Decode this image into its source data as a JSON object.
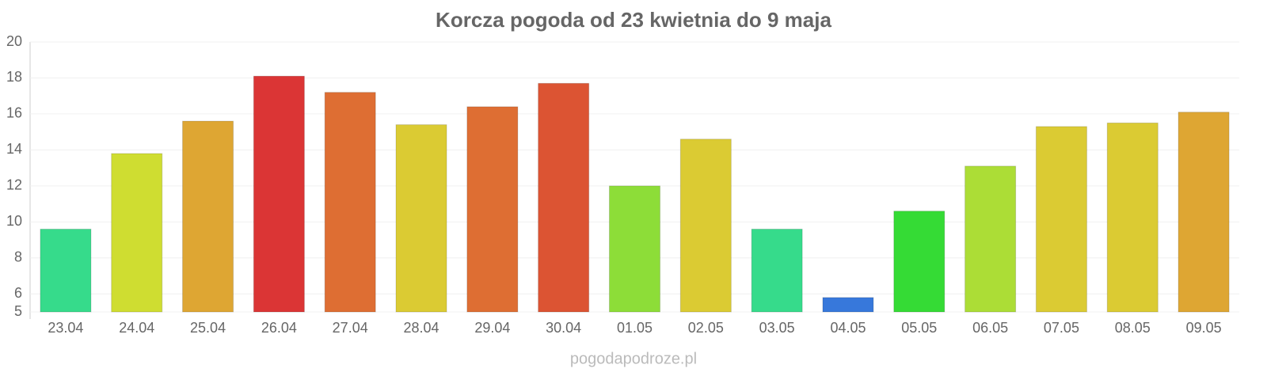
{
  "chart_data": {
    "type": "bar",
    "title": "Korcza pogoda od 23 kwietnia do 9 maja",
    "categories": [
      "23.04",
      "24.04",
      "25.04",
      "26.04",
      "27.04",
      "28.04",
      "29.04",
      "30.04",
      "01.05",
      "02.05",
      "03.05",
      "04.05",
      "05.05",
      "06.05",
      "07.05",
      "08.05",
      "09.05"
    ],
    "values": [
      9.6,
      13.8,
      15.6,
      18.1,
      17.2,
      15.4,
      16.4,
      17.7,
      12.0,
      14.6,
      9.6,
      5.8,
      10.6,
      13.1,
      15.3,
      15.5,
      16.1
    ],
    "colors": [
      "#36db8b",
      "#cfdd31",
      "#dea633",
      "#db3535",
      "#de6e33",
      "#dbcb33",
      "#de6e33",
      "#dc5433",
      "#8ddd38",
      "#dbcb33",
      "#36db8b",
      "#3778db",
      "#35db35",
      "#acdd36",
      "#dbcb33",
      "#dbcb33",
      "#dea633"
    ],
    "ylim": [
      5,
      20
    ],
    "yticks": [
      5,
      6,
      8,
      10,
      12,
      14,
      16,
      18,
      20
    ],
    "grid": true,
    "source": "pogodapodroze.pl"
  }
}
